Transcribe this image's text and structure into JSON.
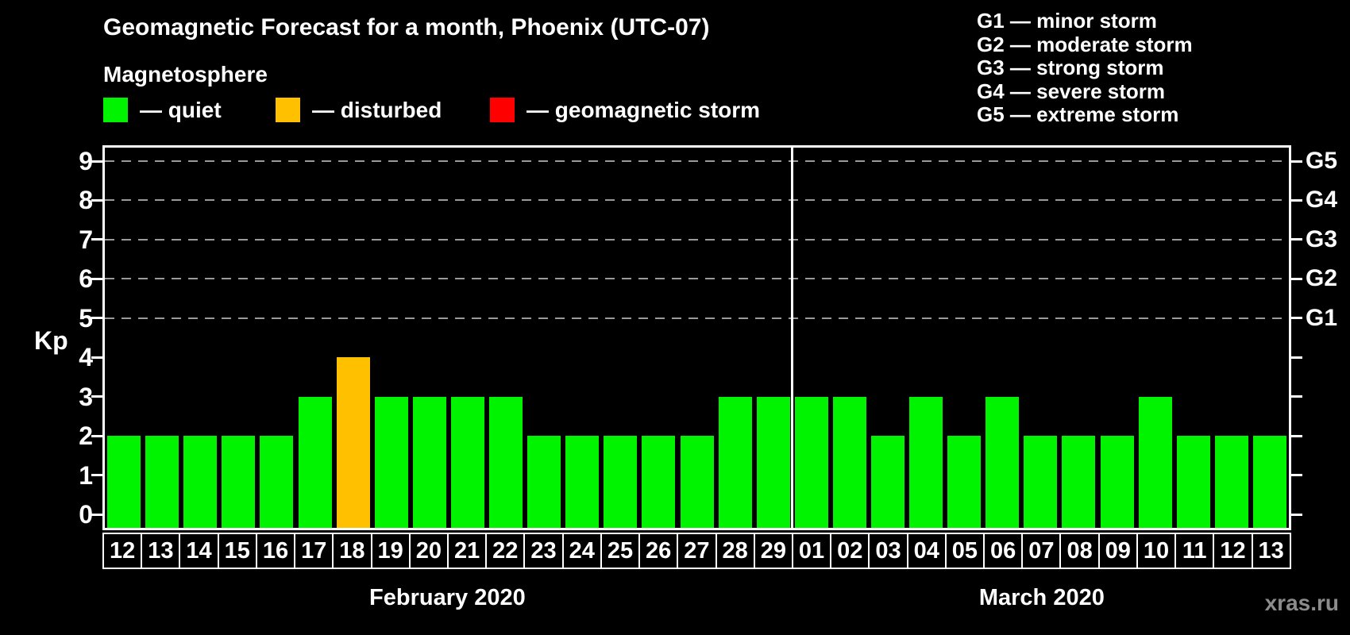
{
  "header": {
    "title": "Geomagnetic Forecast for a month, Phoenix (UTC-07)",
    "subtitle": "Magnetosphere"
  },
  "legend": [
    {
      "status": "quiet",
      "label": "— quiet"
    },
    {
      "status": "disturbed",
      "label": "— disturbed"
    },
    {
      "status": "storm",
      "label": "— geomagnetic storm"
    }
  ],
  "g_legend": [
    "G1 — minor storm",
    "G2 — moderate storm",
    "G3 — strong storm",
    "G4 — severe storm",
    "G5 — extreme storm"
  ],
  "watermark": "xras.ru",
  "colors": {
    "quiet": "#00f400",
    "disturbed": "#ffc000",
    "storm": "#ff0000",
    "grid": "#9a9a9a",
    "axis": "#ffffff",
    "watermark": "#8c8c8c",
    "background": "#000000"
  },
  "chart_data": {
    "type": "bar",
    "title": "Geomagnetic Forecast for a month, Phoenix (UTC-07)",
    "xlabel": "",
    "ylabel": "Kp",
    "ylim": [
      -0.4,
      9.45
    ],
    "y_ticks": [
      0,
      1,
      2,
      3,
      4,
      5,
      6,
      7,
      8,
      9
    ],
    "grid": "horizontal dashed lines at Kp 5-9 only",
    "legend_position": "top-left",
    "g_scale": [
      {
        "kp": 5,
        "label": "G1"
      },
      {
        "kp": 6,
        "label": "G2"
      },
      {
        "kp": 7,
        "label": "G3"
      },
      {
        "kp": 8,
        "label": "G4"
      },
      {
        "kp": 9,
        "label": "G5"
      }
    ],
    "months": [
      {
        "label": "February 2020",
        "categories": [
          "12",
          "13",
          "14",
          "15",
          "16",
          "17",
          "18",
          "19",
          "20",
          "21",
          "22",
          "23",
          "24",
          "25",
          "26",
          "27",
          "28",
          "29"
        ],
        "values": [
          2,
          2,
          2,
          2,
          2,
          3,
          4,
          3,
          3,
          3,
          3,
          2,
          2,
          2,
          2,
          2,
          3,
          3
        ],
        "statuses": [
          "quiet",
          "quiet",
          "quiet",
          "quiet",
          "quiet",
          "quiet",
          "disturbed",
          "quiet",
          "quiet",
          "quiet",
          "quiet",
          "quiet",
          "quiet",
          "quiet",
          "quiet",
          "quiet",
          "quiet",
          "quiet"
        ]
      },
      {
        "label": "March 2020",
        "categories": [
          "01",
          "02",
          "03",
          "04",
          "05",
          "06",
          "07",
          "08",
          "09",
          "10",
          "11",
          "12",
          "13"
        ],
        "values": [
          3,
          3,
          2,
          3,
          2,
          3,
          2,
          2,
          2,
          3,
          2,
          2,
          2
        ],
        "statuses": [
          "quiet",
          "quiet",
          "quiet",
          "quiet",
          "quiet",
          "quiet",
          "quiet",
          "quiet",
          "quiet",
          "quiet",
          "quiet",
          "quiet",
          "quiet"
        ]
      }
    ]
  }
}
